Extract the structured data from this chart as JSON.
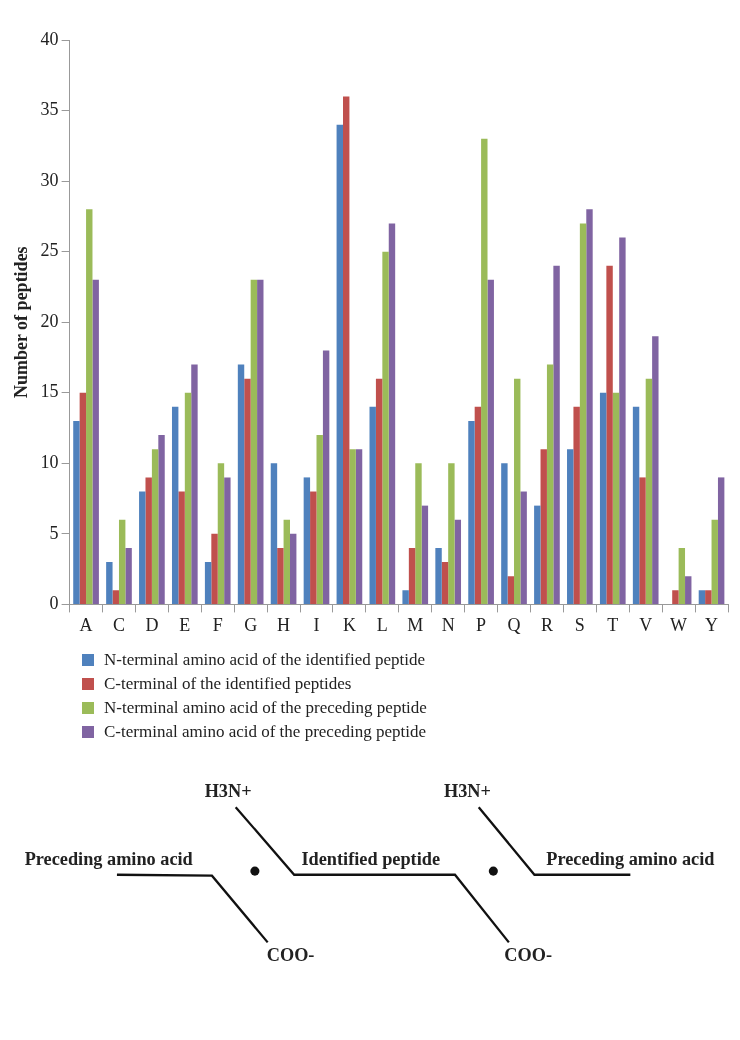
{
  "chart_data": {
    "type": "bar",
    "ylabel": "Number of peptides",
    "categories": [
      "A",
      "C",
      "D",
      "E",
      "F",
      "G",
      "H",
      "I",
      "K",
      "L",
      "M",
      "N",
      "P",
      "Q",
      "R",
      "S",
      "T",
      "V",
      "W",
      "Y"
    ],
    "series": [
      {
        "name": "N-terminal amino acid of the identified peptide",
        "color": "#4f81bd",
        "values": [
          13,
          3,
          8,
          14,
          3,
          17,
          10,
          9,
          34,
          14,
          1,
          4,
          13,
          10,
          7,
          11,
          15,
          14,
          0,
          1
        ]
      },
      {
        "name": "C-terminal of the identified peptides",
        "color": "#c0504d",
        "values": [
          15,
          1,
          9,
          8,
          5,
          16,
          4,
          8,
          36,
          16,
          4,
          3,
          14,
          2,
          11,
          14,
          24,
          9,
          1,
          1
        ]
      },
      {
        "name": "N-terminal amino acid of the preceding peptide",
        "color": "#9bbb59",
        "values": [
          28,
          6,
          11,
          15,
          10,
          23,
          6,
          12,
          11,
          25,
          10,
          10,
          33,
          16,
          17,
          27,
          15,
          16,
          4,
          6
        ]
      },
      {
        "name": "C-terminal amino acid of the preceding peptide",
        "color": "#8064a2",
        "values": [
          23,
          4,
          12,
          17,
          9,
          23,
          5,
          18,
          11,
          27,
          7,
          6,
          23,
          8,
          24,
          28,
          26,
          19,
          2,
          9
        ]
      }
    ],
    "ylim": [
      0,
      40
    ],
    "yticks": [
      0,
      5,
      10,
      15,
      20,
      25,
      30,
      35,
      40
    ],
    "grid": false,
    "legend": "bottom",
    "annotations": [
      "H3N+",
      "H3N+",
      "Preceding amino acid",
      "Identified peptide",
      "Preceding amino acid",
      "COO-",
      "COO-"
    ]
  }
}
